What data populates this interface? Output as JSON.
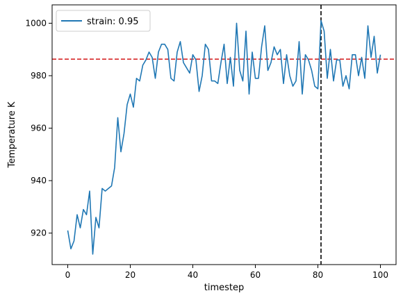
{
  "chart_data": {
    "type": "line",
    "title": "",
    "xlabel": "timestep",
    "ylabel": "Temperature K",
    "xlim": [
      -5,
      105
    ],
    "ylim": [
      908,
      1007
    ],
    "xticks": [
      0,
      20,
      40,
      60,
      80,
      100
    ],
    "yticks": [
      920,
      940,
      960,
      980,
      1000
    ],
    "grid": false,
    "legend_position": "upper-left",
    "series": [
      {
        "name": "strain: 0.95",
        "color": "#1f77b4",
        "x": [
          0,
          1,
          2,
          3,
          4,
          5,
          6,
          7,
          8,
          9,
          10,
          11,
          12,
          13,
          14,
          15,
          16,
          17,
          18,
          19,
          20,
          21,
          22,
          23,
          24,
          25,
          26,
          27,
          28,
          29,
          30,
          31,
          32,
          33,
          34,
          35,
          36,
          37,
          38,
          39,
          40,
          41,
          42,
          43,
          44,
          45,
          46,
          47,
          48,
          49,
          50,
          51,
          52,
          53,
          54,
          55,
          56,
          57,
          58,
          59,
          60,
          61,
          62,
          63,
          64,
          65,
          66,
          67,
          68,
          69,
          70,
          71,
          72,
          73,
          74,
          75,
          76,
          77,
          78,
          79,
          80,
          81,
          82,
          83,
          84,
          85,
          86,
          87,
          88,
          89,
          90,
          91,
          92,
          93,
          94,
          95,
          96,
          97,
          98,
          99,
          100
        ],
        "y": [
          921,
          914,
          917,
          927,
          922,
          929,
          927,
          936,
          912,
          926,
          922,
          937,
          936,
          937,
          938,
          945,
          964,
          951,
          958,
          969,
          973,
          968,
          979,
          978,
          984,
          986,
          989,
          987,
          979,
          989,
          992,
          992,
          990,
          979,
          978,
          989,
          993,
          985,
          983,
          981,
          988,
          986,
          974,
          980,
          992,
          990,
          978,
          978,
          977,
          985,
          992,
          977,
          987,
          976,
          1000,
          982,
          978,
          997,
          973,
          989,
          979,
          979,
          991,
          999,
          982,
          985,
          991,
          988,
          990,
          977,
          988,
          980,
          976,
          978,
          993,
          973,
          988,
          986,
          982,
          976,
          975,
          1001,
          997,
          979,
          990,
          978,
          986,
          986,
          976,
          980,
          975,
          988,
          988,
          980,
          987,
          979,
          999,
          987,
          995,
          981,
          988
        ]
      }
    ],
    "reference_lines": [
      {
        "orientation": "horizontal",
        "value": 986.3,
        "color": "#d62728",
        "style": "dashed"
      },
      {
        "orientation": "vertical",
        "value": 81,
        "color": "#000000",
        "style": "dashed"
      }
    ]
  }
}
